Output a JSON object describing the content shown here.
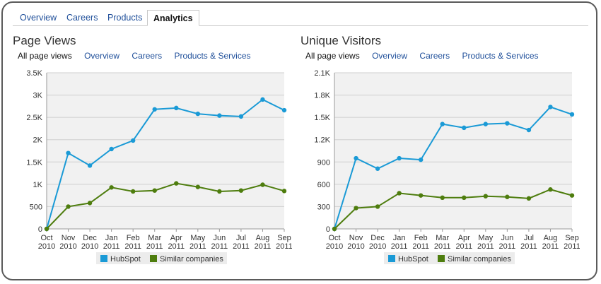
{
  "tabs": [
    {
      "label": "Overview",
      "active": false
    },
    {
      "label": "Careers",
      "active": false
    },
    {
      "label": "Products",
      "active": false
    },
    {
      "label": "Analytics",
      "active": true
    }
  ],
  "colors": {
    "hubspot": "#1a9ad6",
    "similar": "#4e7d0e",
    "link": "#1f4f9a",
    "plot_bg": "#f1f1f1"
  },
  "panels": [
    {
      "title": "Page Views",
      "subnav": [
        {
          "label": "All page views",
          "selected": true
        },
        {
          "label": "Overview",
          "selected": false
        },
        {
          "label": "Careers",
          "selected": false
        },
        {
          "label": "Products & Services",
          "selected": false
        }
      ]
    },
    {
      "title": "Unique Visitors",
      "subnav": [
        {
          "label": "All page views",
          "selected": true
        },
        {
          "label": "Overview",
          "selected": false
        },
        {
          "label": "Careers",
          "selected": false
        },
        {
          "label": "Products & Services",
          "selected": false
        }
      ]
    }
  ],
  "chart_data": [
    {
      "type": "line",
      "x": [
        "Oct 2010",
        "Nov 2010",
        "Dec 2010",
        "Jan 2011",
        "Feb 2011",
        "Mar 2011",
        "Apr 2011",
        "May 2011",
        "Jun 2011",
        "Jul 2011",
        "Aug 2011",
        "Sep 2011"
      ],
      "x_tick_labels": [
        [
          "Oct",
          "2010"
        ],
        [
          "Nov",
          "2010"
        ],
        [
          "Dec",
          "2010"
        ],
        [
          "Jan",
          "2011"
        ],
        [
          "Feb",
          "2011"
        ],
        [
          "Mar",
          "2011"
        ],
        [
          "Apr",
          "2011"
        ],
        [
          "May",
          "2011"
        ],
        [
          "Jun",
          "2011"
        ],
        [
          "Jul",
          "2011"
        ],
        [
          "Aug",
          "2011"
        ],
        [
          "Sep",
          "2011"
        ]
      ],
      "y_ticks": [
        0,
        500,
        1000,
        1500,
        2000,
        2500,
        3000,
        3500
      ],
      "y_tick_labels": [
        "0",
        "500",
        "1K",
        "1.5K",
        "2K",
        "2.5K",
        "3K",
        "3.5K"
      ],
      "ylim": [
        0,
        3500
      ],
      "grid": true,
      "legend_position": "bottom-center",
      "series": [
        {
          "name": "HubSpot",
          "color": "#1a9ad6",
          "values": [
            0,
            1700,
            1420,
            1790,
            1980,
            2680,
            2710,
            2580,
            2540,
            2520,
            2900,
            2660
          ]
        },
        {
          "name": "Similar companies",
          "color": "#4e7d0e",
          "values": [
            0,
            500,
            580,
            930,
            840,
            860,
            1020,
            940,
            840,
            860,
            990,
            850
          ]
        }
      ]
    },
    {
      "type": "line",
      "x": [
        "Oct 2010",
        "Nov 2010",
        "Dec 2010",
        "Jan 2011",
        "Feb 2011",
        "Mar 2011",
        "Apr 2011",
        "May 2011",
        "Jun 2011",
        "Jul 2011",
        "Aug 2011",
        "Sep 2011"
      ],
      "x_tick_labels": [
        [
          "Oct",
          "2010"
        ],
        [
          "Nov",
          "2010"
        ],
        [
          "Dec",
          "2010"
        ],
        [
          "Jan",
          "2011"
        ],
        [
          "Feb",
          "2011"
        ],
        [
          "Mar",
          "2011"
        ],
        [
          "Apr",
          "2011"
        ],
        [
          "May",
          "2011"
        ],
        [
          "Jun",
          "2011"
        ],
        [
          "Jul",
          "2011"
        ],
        [
          "Aug",
          "2011"
        ],
        [
          "Sep",
          "2011"
        ]
      ],
      "y_ticks": [
        0,
        300,
        600,
        900,
        1200,
        1500,
        1800,
        2100
      ],
      "y_tick_labels": [
        "0",
        "300",
        "600",
        "900",
        "1.2K",
        "1.5K",
        "1.8K",
        "2.1K"
      ],
      "ylim": [
        0,
        2100
      ],
      "grid": true,
      "legend_position": "bottom-center",
      "series": [
        {
          "name": "HubSpot",
          "color": "#1a9ad6",
          "values": [
            0,
            950,
            810,
            950,
            930,
            1410,
            1360,
            1410,
            1420,
            1330,
            1640,
            1540
          ]
        },
        {
          "name": "Similar companies",
          "color": "#4e7d0e",
          "values": [
            0,
            280,
            300,
            480,
            450,
            420,
            420,
            440,
            430,
            410,
            530,
            450
          ]
        }
      ]
    }
  ]
}
